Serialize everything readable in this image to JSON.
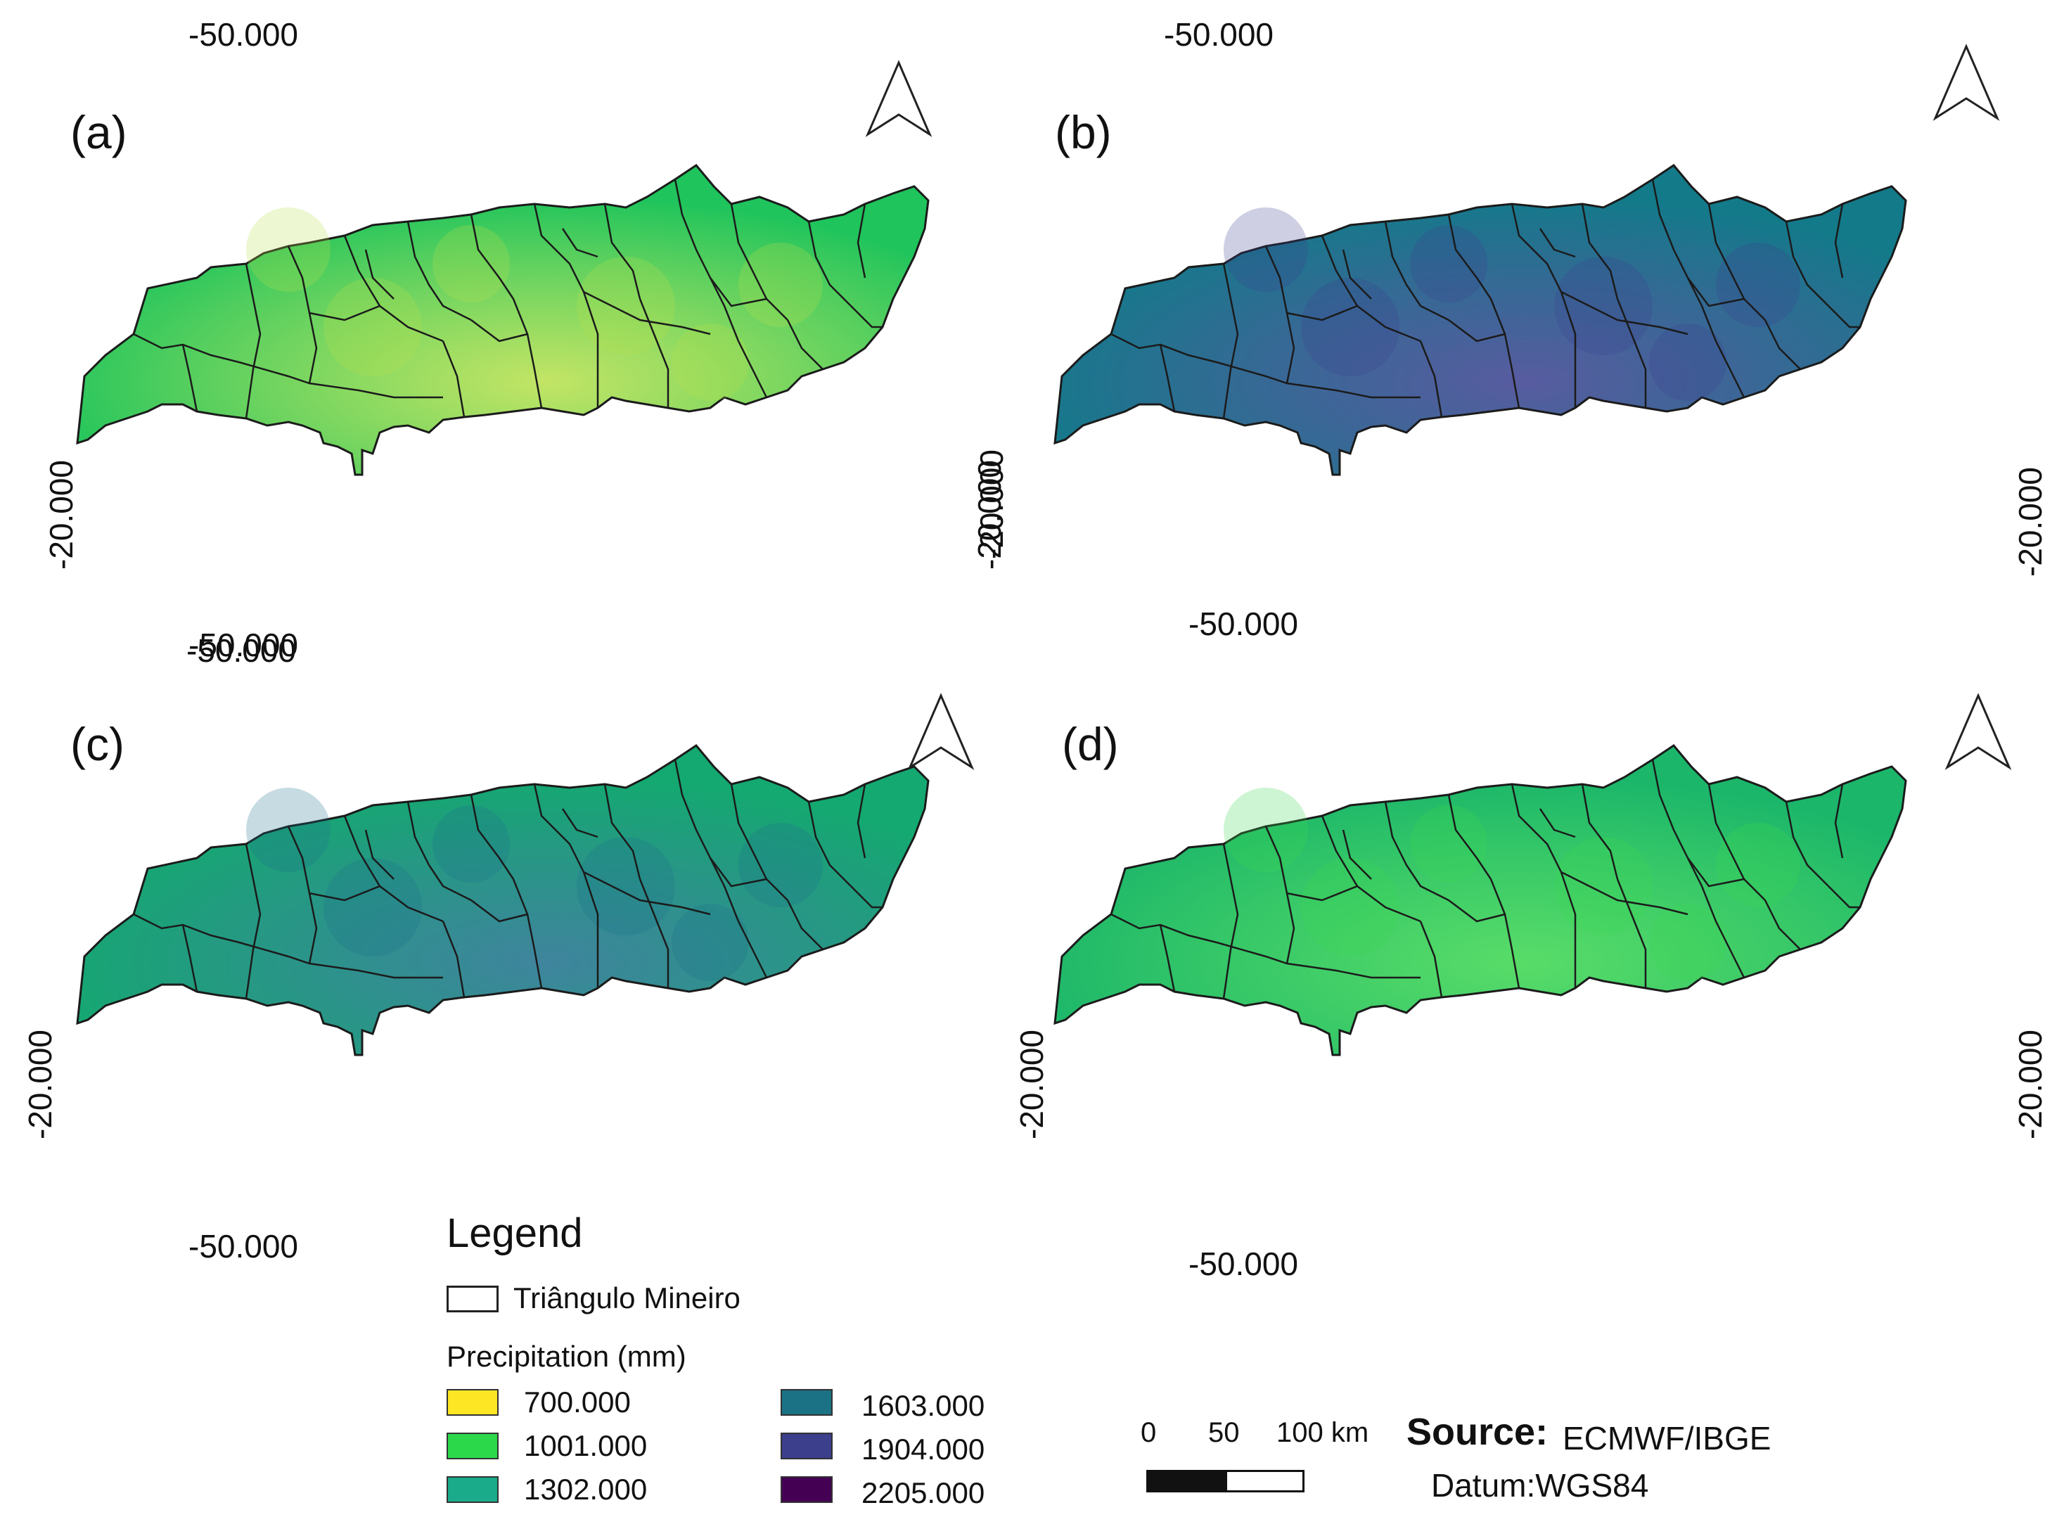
{
  "panels": [
    {
      "label": "(a)",
      "coord_top": "-50.000",
      "coord_bottom": "-50.000",
      "coord_left": "-20.000",
      "coord_right": "-20.000",
      "base_color": "#1fc45c",
      "accent_color": "#b8e04a"
    },
    {
      "label": "(b)",
      "coord_top": "-50.000",
      "coord_bottom": "-50.000",
      "coord_left": "-20.000",
      "coord_right": "-20.000",
      "base_color": "#137a8a",
      "accent_color": "#3a3f8f"
    },
    {
      "label": "(c)",
      "coord_top": "-50.000",
      "coord_bottom": "",
      "coord_left": "-20.000",
      "coord_right": "",
      "base_color": "#14a970",
      "accent_color": "#1d6f8c"
    },
    {
      "label": "(d)",
      "coord_top": "",
      "coord_bottom": "-50.000",
      "coord_left": "-20.000",
      "coord_right": "-20.000",
      "base_color": "#1bb66a",
      "accent_color": "#3bd64e"
    }
  ],
  "extra_coords": {
    "panel_c_bottom": "-50.000",
    "panel_d_left": "-20.000"
  },
  "legend": {
    "title": "Legend",
    "outline_label": "Triângulo Mineiro",
    "precip_title": "Precipitation (mm)",
    "classes": [
      {
        "value": "700.000",
        "color": "#fde725"
      },
      {
        "value": "1001.000",
        "color": "#2bd84a"
      },
      {
        "value": "1302.000",
        "color": "#1aab8a"
      },
      {
        "value": "1603.000",
        "color": "#1c7285"
      },
      {
        "value": "1904.000",
        "color": "#3b3f8c"
      },
      {
        "value": "2205.000",
        "color": "#440154"
      }
    ]
  },
  "scale": {
    "ticks": [
      "0",
      "50",
      "100 km"
    ]
  },
  "source": {
    "label": "Source:",
    "text": "ECMWF/IBGE",
    "datum": "Datum:WGS84"
  }
}
